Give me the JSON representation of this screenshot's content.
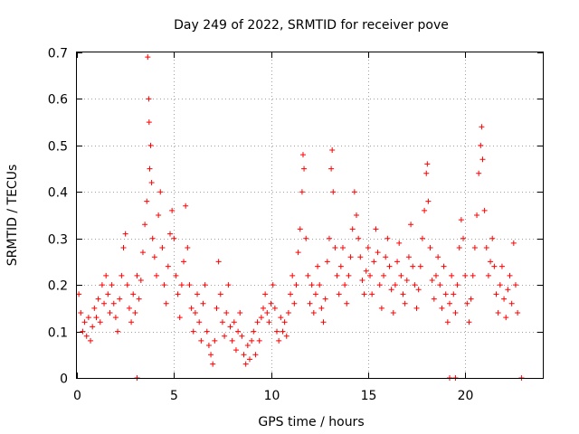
{
  "chart_data": {
    "type": "scatter",
    "title": "Day 249 of 2022, SRMTID for receiver pove",
    "xlabel": "GPS time / hours",
    "ylabel": "SRMTID / TECUs",
    "xlim": [
      0,
      24
    ],
    "ylim": [
      0,
      0.7
    ],
    "xticks": [
      "0",
      "5",
      "10",
      "15",
      "20"
    ],
    "xtick_values": [
      0,
      5,
      10,
      15,
      20
    ],
    "yticks": [
      "0",
      "0.1",
      "0.2",
      "0.3",
      "0.4",
      "0.5",
      "0.6",
      "0.7"
    ],
    "ytick_values": [
      0,
      0.1,
      0.2,
      0.3,
      0.4,
      0.5,
      0.6,
      0.7
    ],
    "grid": true,
    "marker": "+",
    "color": "#ff0000",
    "series": [
      {
        "name": "SRMTID",
        "points": [
          [
            0.1,
            0.18
          ],
          [
            0.2,
            0.14
          ],
          [
            0.3,
            0.1
          ],
          [
            0.4,
            0.12
          ],
          [
            0.5,
            0.09
          ],
          [
            0.6,
            0.13
          ],
          [
            0.7,
            0.08
          ],
          [
            0.8,
            0.11
          ],
          [
            0.9,
            0.15
          ],
          [
            1.0,
            0.13
          ],
          [
            1.1,
            0.17
          ],
          [
            1.2,
            0.12
          ],
          [
            1.3,
            0.2
          ],
          [
            1.4,
            0.16
          ],
          [
            1.5,
            0.22
          ],
          [
            1.6,
            0.18
          ],
          [
            1.7,
            0.14
          ],
          [
            1.8,
            0.2
          ],
          [
            1.9,
            0.16
          ],
          [
            2.0,
            0.13
          ],
          [
            2.1,
            0.1
          ],
          [
            2.2,
            0.17
          ],
          [
            2.3,
            0.22
          ],
          [
            2.4,
            0.28
          ],
          [
            2.5,
            0.31
          ],
          [
            2.6,
            0.2
          ],
          [
            2.7,
            0.15
          ],
          [
            2.8,
            0.12
          ],
          [
            2.9,
            0.18
          ],
          [
            3.0,
            0.14
          ],
          [
            3.1,
            0.22
          ],
          [
            3.2,
            0.17
          ],
          [
            3.3,
            0.21
          ],
          [
            3.4,
            0.27
          ],
          [
            3.5,
            0.33
          ],
          [
            3.6,
            0.38
          ],
          [
            3.65,
            0.69
          ],
          [
            3.7,
            0.6
          ],
          [
            3.72,
            0.55
          ],
          [
            3.75,
            0.45
          ],
          [
            3.8,
            0.5
          ],
          [
            3.85,
            0.42
          ],
          [
            3.9,
            0.3
          ],
          [
            4.0,
            0.26
          ],
          [
            4.1,
            0.22
          ],
          [
            4.2,
            0.35
          ],
          [
            4.3,
            0.4
          ],
          [
            4.4,
            0.28
          ],
          [
            4.5,
            0.2
          ],
          [
            4.6,
            0.16
          ],
          [
            4.7,
            0.24
          ],
          [
            4.8,
            0.31
          ],
          [
            4.9,
            0.36
          ],
          [
            5.0,
            0.3
          ],
          [
            5.1,
            0.22
          ],
          [
            5.2,
            0.18
          ],
          [
            5.3,
            0.13
          ],
          [
            5.4,
            0.2
          ],
          [
            5.5,
            0.25
          ],
          [
            5.6,
            0.37
          ],
          [
            5.7,
            0.28
          ],
          [
            5.8,
            0.2
          ],
          [
            5.9,
            0.15
          ],
          [
            6.0,
            0.1
          ],
          [
            6.1,
            0.14
          ],
          [
            6.2,
            0.18
          ],
          [
            6.3,
            0.12
          ],
          [
            6.4,
            0.08
          ],
          [
            6.5,
            0.16
          ],
          [
            6.6,
            0.2
          ],
          [
            6.7,
            0.1
          ],
          [
            6.8,
            0.07
          ],
          [
            6.9,
            0.05
          ],
          [
            7.0,
            0.03
          ],
          [
            7.1,
            0.08
          ],
          [
            7.2,
            0.15
          ],
          [
            7.3,
            0.25
          ],
          [
            7.4,
            0.18
          ],
          [
            7.5,
            0.12
          ],
          [
            7.6,
            0.09
          ],
          [
            7.7,
            0.14
          ],
          [
            7.8,
            0.2
          ],
          [
            7.9,
            0.11
          ],
          [
            8.0,
            0.08
          ],
          [
            8.1,
            0.12
          ],
          [
            8.2,
            0.06
          ],
          [
            8.3,
            0.1
          ],
          [
            8.4,
            0.14
          ],
          [
            8.5,
            0.09
          ],
          [
            8.6,
            0.05
          ],
          [
            8.7,
            0.03
          ],
          [
            8.8,
            0.07
          ],
          [
            8.9,
            0.04
          ],
          [
            9.0,
            0.08
          ],
          [
            9.1,
            0.1
          ],
          [
            9.2,
            0.05
          ],
          [
            9.3,
            0.12
          ],
          [
            9.4,
            0.08
          ],
          [
            9.5,
            0.13
          ],
          [
            9.6,
            0.15
          ],
          [
            9.7,
            0.18
          ],
          [
            9.8,
            0.14
          ],
          [
            9.9,
            0.12
          ],
          [
            10.0,
            0.16
          ],
          [
            10.1,
            0.2
          ],
          [
            10.2,
            0.15
          ],
          [
            10.3,
            0.1
          ],
          [
            10.4,
            0.08
          ],
          [
            10.5,
            0.13
          ],
          [
            10.6,
            0.1
          ],
          [
            10.7,
            0.12
          ],
          [
            10.8,
            0.09
          ],
          [
            10.9,
            0.14
          ],
          [
            11.0,
            0.18
          ],
          [
            11.1,
            0.22
          ],
          [
            11.2,
            0.16
          ],
          [
            11.3,
            0.2
          ],
          [
            11.4,
            0.27
          ],
          [
            11.5,
            0.32
          ],
          [
            11.6,
            0.4
          ],
          [
            11.65,
            0.48
          ],
          [
            11.7,
            0.45
          ],
          [
            11.8,
            0.3
          ],
          [
            11.9,
            0.22
          ],
          [
            12.0,
            0.16
          ],
          [
            12.1,
            0.2
          ],
          [
            12.2,
            0.14
          ],
          [
            12.3,
            0.18
          ],
          [
            12.4,
            0.24
          ],
          [
            12.5,
            0.2
          ],
          [
            12.6,
            0.15
          ],
          [
            12.7,
            0.12
          ],
          [
            12.8,
            0.17
          ],
          [
            12.9,
            0.25
          ],
          [
            13.0,
            0.3
          ],
          [
            13.1,
            0.45
          ],
          [
            13.15,
            0.49
          ],
          [
            13.2,
            0.4
          ],
          [
            13.3,
            0.28
          ],
          [
            13.4,
            0.22
          ],
          [
            13.5,
            0.18
          ],
          [
            13.6,
            0.24
          ],
          [
            13.7,
            0.28
          ],
          [
            13.8,
            0.2
          ],
          [
            13.9,
            0.16
          ],
          [
            14.0,
            0.22
          ],
          [
            14.1,
            0.26
          ],
          [
            14.2,
            0.32
          ],
          [
            14.3,
            0.4
          ],
          [
            14.4,
            0.35
          ],
          [
            14.5,
            0.3
          ],
          [
            14.6,
            0.26
          ],
          [
            14.7,
            0.21
          ],
          [
            14.8,
            0.18
          ],
          [
            14.9,
            0.23
          ],
          [
            15.0,
            0.28
          ],
          [
            15.1,
            0.22
          ],
          [
            15.2,
            0.18
          ],
          [
            15.3,
            0.25
          ],
          [
            15.4,
            0.32
          ],
          [
            15.5,
            0.27
          ],
          [
            15.6,
            0.2
          ],
          [
            15.7,
            0.15
          ],
          [
            15.8,
            0.22
          ],
          [
            15.9,
            0.26
          ],
          [
            16.0,
            0.3
          ],
          [
            16.1,
            0.24
          ],
          [
            16.2,
            0.19
          ],
          [
            16.3,
            0.14
          ],
          [
            16.4,
            0.2
          ],
          [
            16.5,
            0.25
          ],
          [
            16.6,
            0.29
          ],
          [
            16.7,
            0.22
          ],
          [
            16.8,
            0.18
          ],
          [
            16.9,
            0.16
          ],
          [
            17.0,
            0.21
          ],
          [
            17.1,
            0.26
          ],
          [
            17.2,
            0.33
          ],
          [
            17.3,
            0.24
          ],
          [
            17.4,
            0.2
          ],
          [
            17.5,
            0.15
          ],
          [
            17.6,
            0.19
          ],
          [
            17.7,
            0.24
          ],
          [
            17.8,
            0.3
          ],
          [
            17.9,
            0.36
          ],
          [
            18.0,
            0.44
          ],
          [
            18.05,
            0.46
          ],
          [
            18.1,
            0.38
          ],
          [
            18.2,
            0.28
          ],
          [
            18.3,
            0.21
          ],
          [
            18.4,
            0.17
          ],
          [
            18.5,
            0.22
          ],
          [
            18.6,
            0.26
          ],
          [
            18.7,
            0.2
          ],
          [
            18.8,
            0.15
          ],
          [
            18.9,
            0.24
          ],
          [
            19.0,
            0.18
          ],
          [
            19.1,
            0.12
          ],
          [
            19.2,
            0.16
          ],
          [
            19.3,
            0.22
          ],
          [
            19.4,
            0.18
          ],
          [
            19.5,
            0.14
          ],
          [
            19.6,
            0.2
          ],
          [
            19.7,
            0.28
          ],
          [
            19.8,
            0.34
          ],
          [
            19.9,
            0.3
          ],
          [
            20.0,
            0.22
          ],
          [
            20.1,
            0.16
          ],
          [
            20.2,
            0.12
          ],
          [
            20.3,
            0.17
          ],
          [
            20.4,
            0.22
          ],
          [
            20.5,
            0.28
          ],
          [
            20.6,
            0.35
          ],
          [
            20.7,
            0.44
          ],
          [
            20.8,
            0.5
          ],
          [
            20.85,
            0.54
          ],
          [
            20.9,
            0.47
          ],
          [
            21.0,
            0.36
          ],
          [
            21.1,
            0.28
          ],
          [
            21.2,
            0.22
          ],
          [
            21.3,
            0.25
          ],
          [
            21.4,
            0.3
          ],
          [
            21.5,
            0.24
          ],
          [
            21.6,
            0.18
          ],
          [
            21.7,
            0.14
          ],
          [
            21.8,
            0.2
          ],
          [
            21.9,
            0.24
          ],
          [
            22.0,
            0.17
          ],
          [
            22.1,
            0.13
          ],
          [
            22.2,
            0.19
          ],
          [
            22.3,
            0.22
          ],
          [
            22.4,
            0.16
          ],
          [
            22.5,
            0.29
          ],
          [
            22.6,
            0.2
          ],
          [
            22.7,
            0.14
          ],
          [
            3.1,
            0.0
          ],
          [
            19.2,
            0.0
          ],
          [
            19.5,
            0.0
          ],
          [
            22.9,
            0.0
          ]
        ]
      }
    ]
  }
}
